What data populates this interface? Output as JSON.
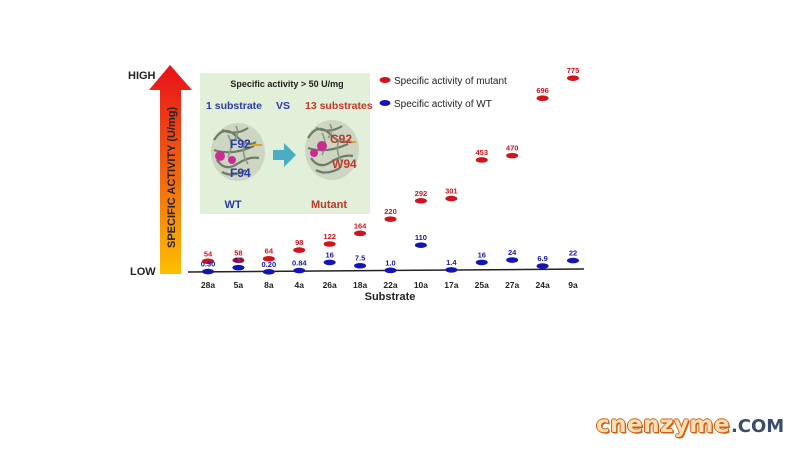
{
  "chart_data": {
    "type": "scatter",
    "title": "",
    "xlabel": "Substrate",
    "ylabel": "SPECIFIC ACTIVITY (U/mg)",
    "y_high_label": "HIGH",
    "y_low_label": "LOW",
    "categories": [
      "28a",
      "5a",
      "8a",
      "4a",
      "26a",
      "18a",
      "22a",
      "10a",
      "17a",
      "25a",
      "27a",
      "24a",
      "9a"
    ],
    "series": [
      {
        "name": "Specific activity of mutant",
        "color": "#d0141c",
        "values": [
          54,
          58,
          64,
          98,
          122,
          164,
          220,
          292,
          301,
          453,
          470,
          696,
          775
        ],
        "labels": [
          "54",
          "58",
          "64",
          "98",
          "122",
          "164",
          "220",
          "292",
          "301",
          "453",
          "470",
          "696",
          "775"
        ]
      },
      {
        "name": "Specific activity of WT",
        "color": "#1414b4",
        "values": [
          0.3,
          4.1,
          0.2,
          0.84,
          16,
          7.5,
          1.0,
          110,
          1.4,
          16,
          24,
          6.9,
          22
        ],
        "labels": [
          "0.30",
          "4.1",
          "0.20",
          "0.84",
          "16",
          "7.5",
          "1.0",
          "110",
          "1.4",
          "16",
          "24",
          "6.9",
          "22"
        ]
      }
    ],
    "legend_position": "top-right",
    "grid": false,
    "inset": {
      "header": "Specific activity > 50 U/mg",
      "left_text": "1 substrate",
      "vs_text": "VS",
      "right_text": "13 substrates",
      "wt_caption": "WT",
      "mutant_caption": "Mutant",
      "wt_residue_1": "F92",
      "wt_residue_2": "F94",
      "mut_residue_1": "C92",
      "mut_residue_2": "W94",
      "background_color": "#e2efd9",
      "wt_color": "#2b3aa8",
      "mutant_color": "#c0392b"
    }
  },
  "watermark": {
    "main": "cnenzyme",
    "tld": ".COM"
  }
}
